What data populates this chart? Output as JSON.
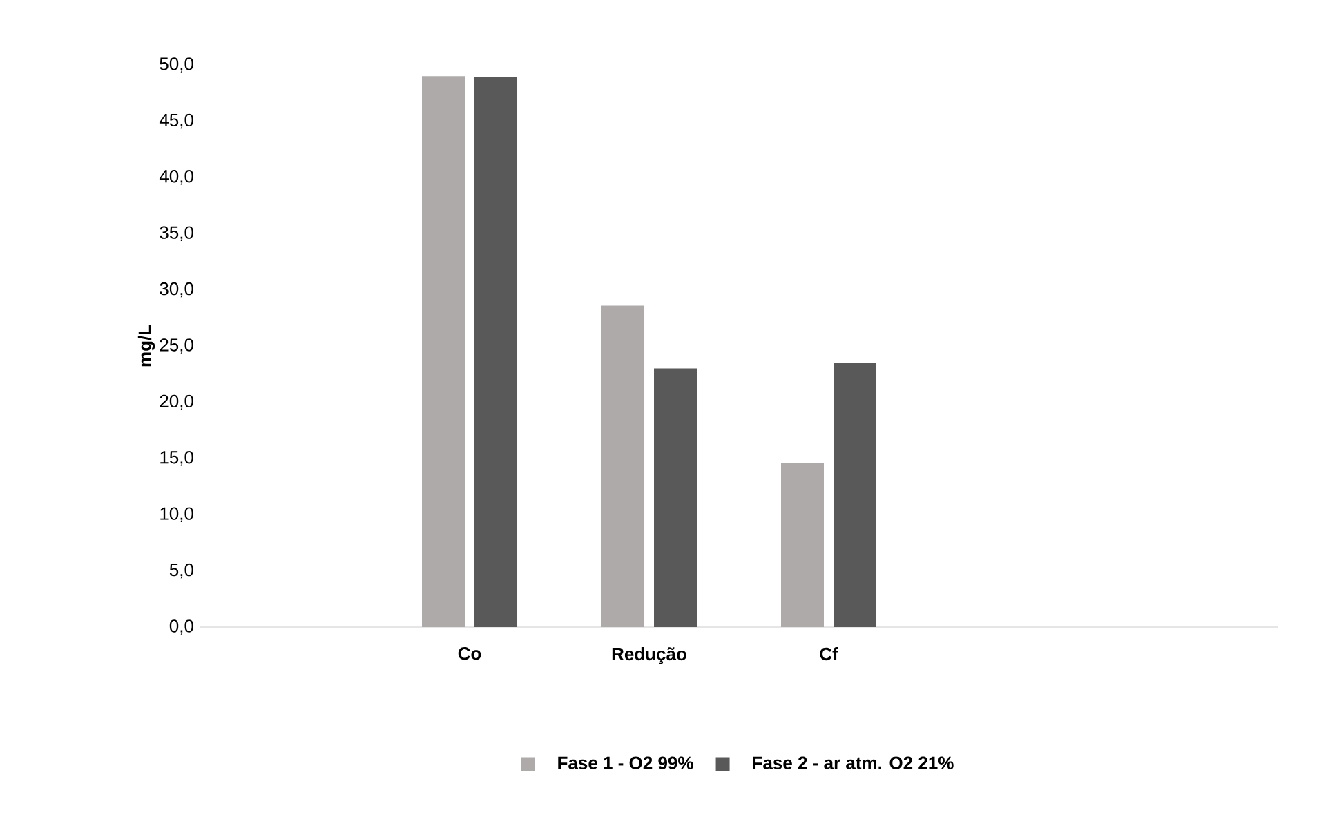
{
  "chart_data": {
    "type": "bar",
    "ylabel": "mg/L",
    "categories": [
      null,
      "Co",
      "Redução",
      "Cf",
      null,
      null
    ],
    "series": [
      {
        "name": "Fase 1 - O2 99%",
        "color": "#aeaaaa",
        "values": [
          null,
          49.0,
          28.6,
          14.6,
          null,
          null
        ]
      },
      {
        "name": "Fase 2 - ar atm.  O2 21%",
        "color": "#595959",
        "values": [
          null,
          48.9,
          23.0,
          23.5,
          null,
          null
        ]
      }
    ],
    "ylim": [
      0,
      50
    ],
    "yticks": [
      {
        "value": 0,
        "label": "0,0"
      },
      {
        "value": 5,
        "label": "5,0"
      },
      {
        "value": 10,
        "label": "10,0"
      },
      {
        "value": 15,
        "label": "15,0"
      },
      {
        "value": 20,
        "label": "20,0"
      },
      {
        "value": 25,
        "label": "25,0"
      },
      {
        "value": 30,
        "label": "30,0"
      },
      {
        "value": 35,
        "label": "35,0"
      },
      {
        "value": 40,
        "label": "40,0"
      },
      {
        "value": 45,
        "label": "45,0"
      },
      {
        "value": 50,
        "label": "50,0"
      }
    ],
    "legend": "bottom"
  }
}
